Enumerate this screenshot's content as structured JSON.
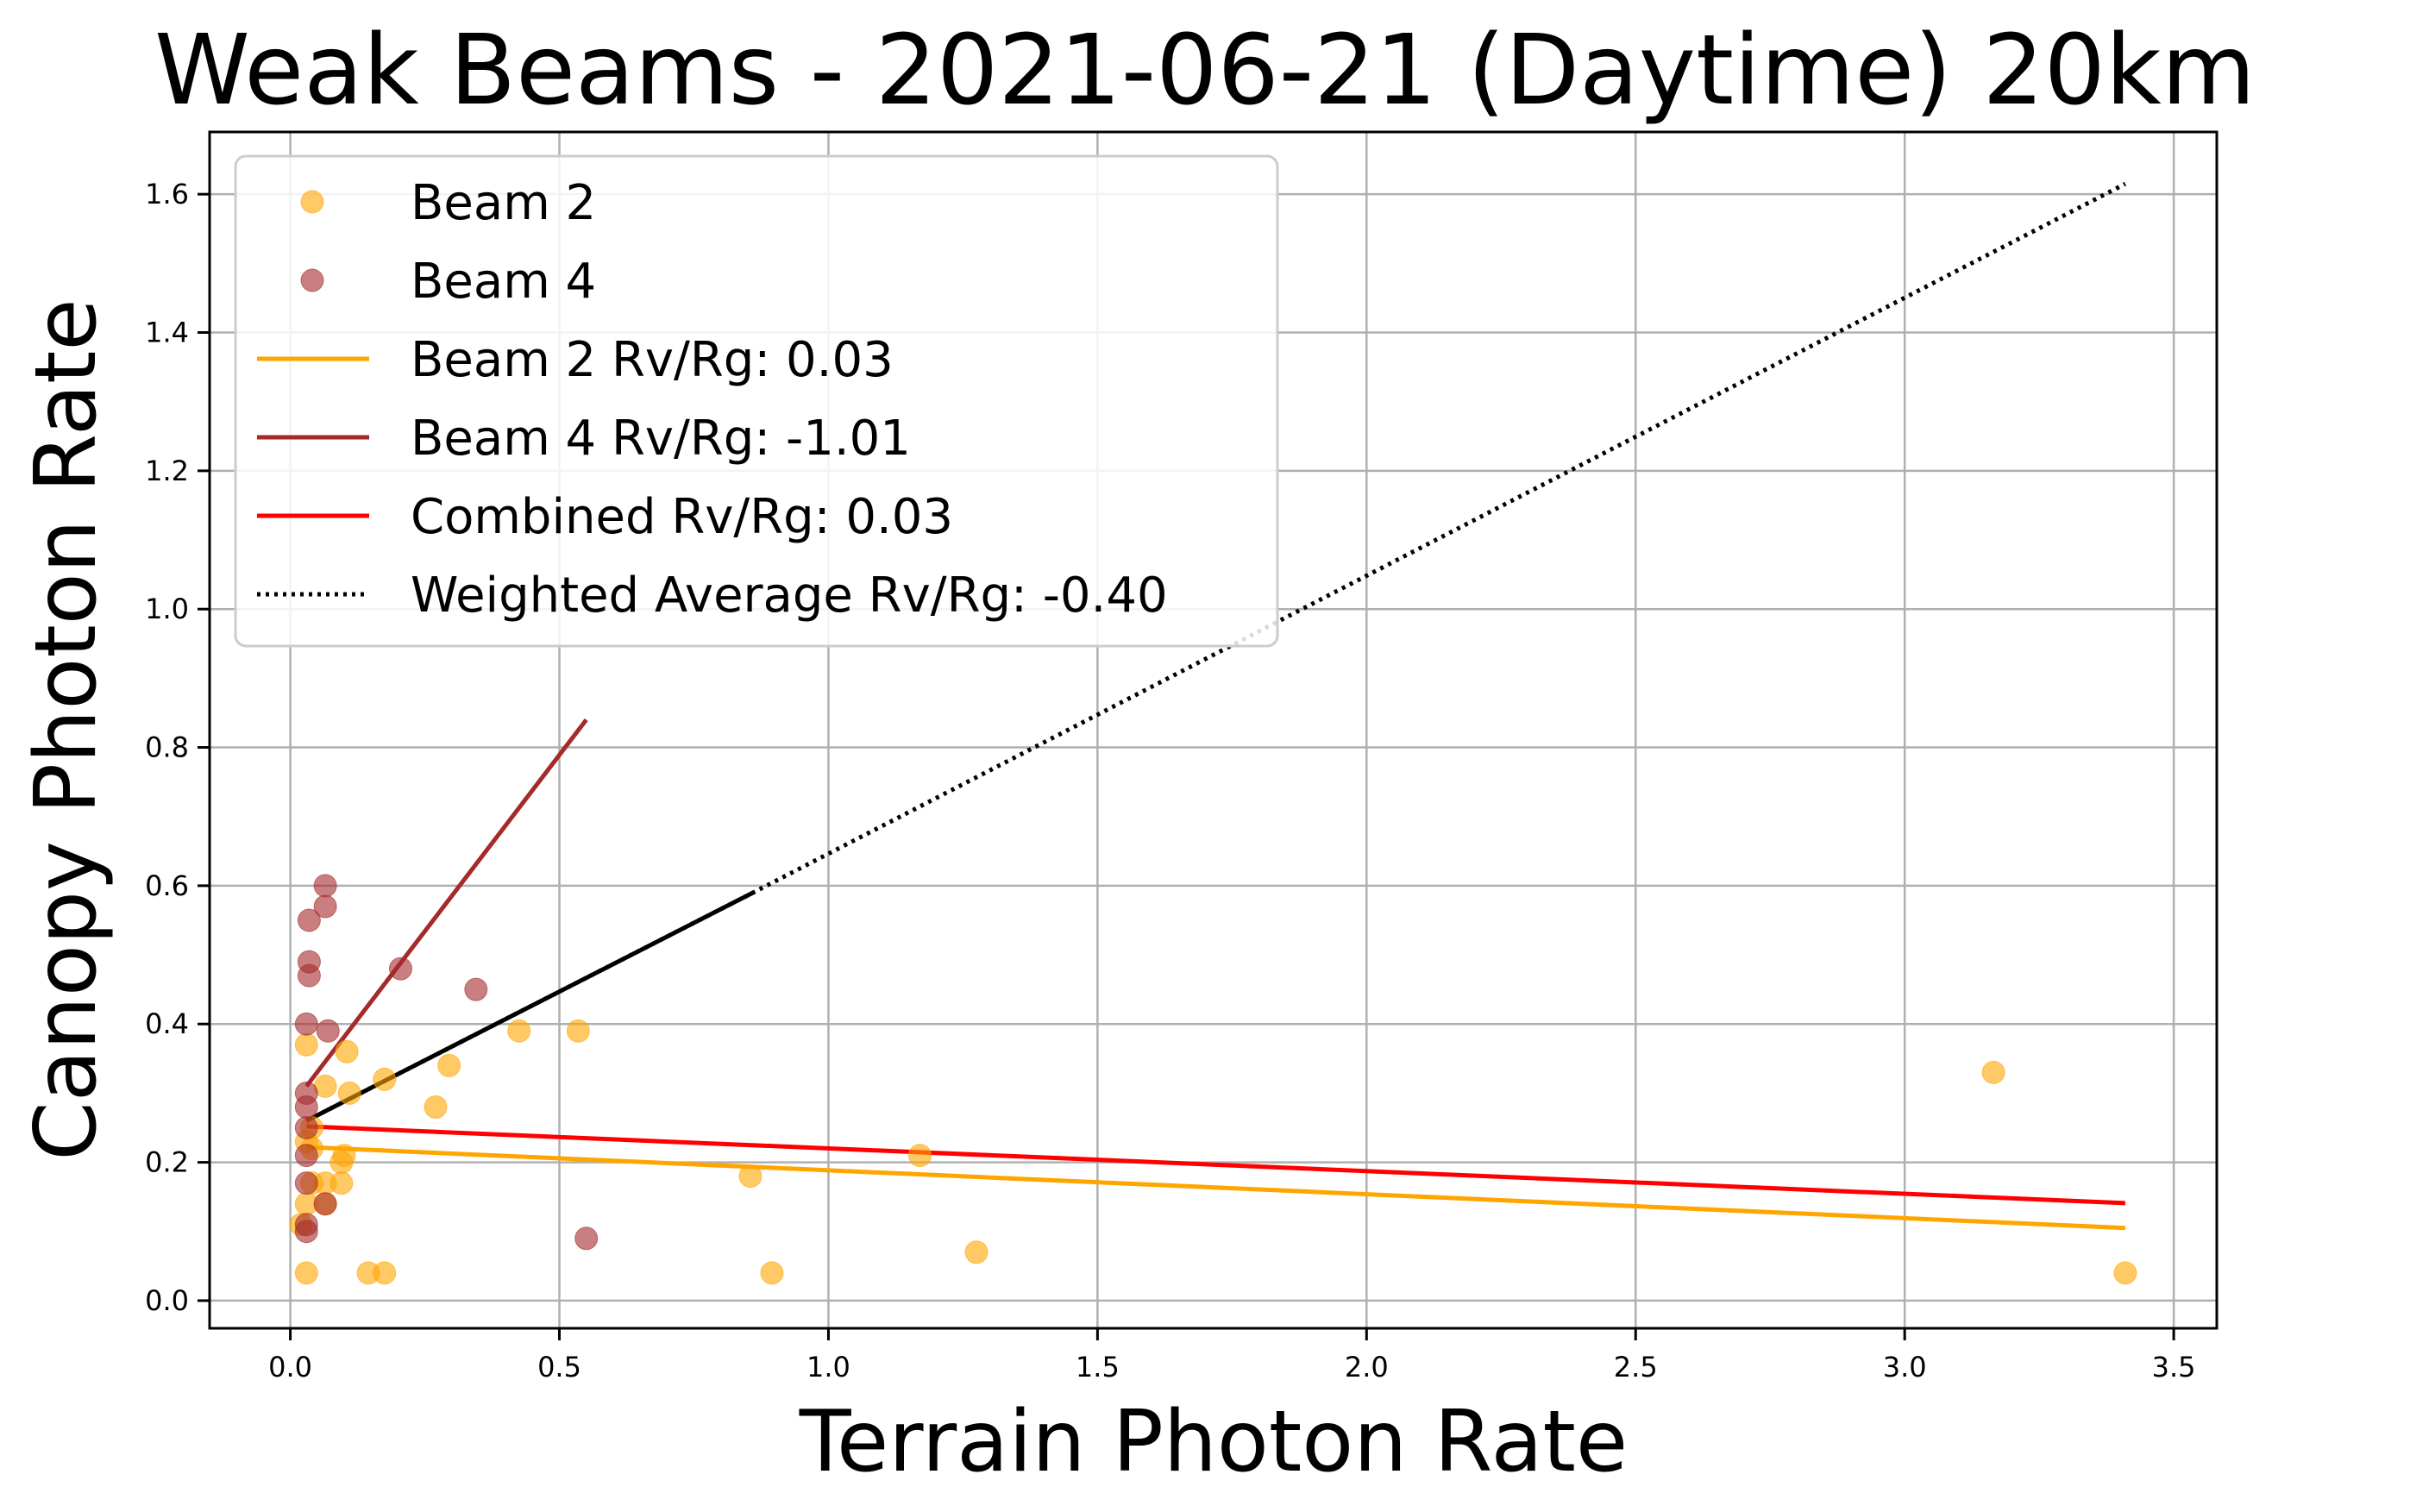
{
  "chart_data": {
    "type": "scatter",
    "title": "Weak Beams - 2021-06-21 (Daytime) 20km",
    "xlabel": "Terrain Photon Rate",
    "ylabel": "Canopy Photon Rate",
    "xlim": [
      -0.15,
      3.58
    ],
    "ylim": [
      -0.04,
      1.69
    ],
    "x_ticks": [
      0.0,
      0.5,
      1.0,
      1.5,
      2.0,
      2.5,
      3.0,
      3.5
    ],
    "x_tick_labels": [
      "0.0",
      "0.5",
      "1.0",
      "1.5",
      "2.0",
      "2.5",
      "3.0",
      "3.5"
    ],
    "y_ticks": [
      0.0,
      0.2,
      0.4,
      0.6,
      0.8,
      1.0,
      1.2,
      1.4,
      1.6
    ],
    "y_tick_labels": [
      "0.0",
      "0.2",
      "0.4",
      "0.6",
      "0.8",
      "1.0",
      "1.2",
      "1.4",
      "1.6"
    ],
    "grid": true,
    "legend_position": "top-left",
    "scatter_series": [
      {
        "name": "Beam 2",
        "color": "#FFA500",
        "points": [
          [
            0.02,
            0.11
          ],
          [
            0.03,
            0.37
          ],
          [
            0.03,
            0.23
          ],
          [
            0.03,
            0.14
          ],
          [
            0.03,
            0.04
          ],
          [
            0.04,
            0.25
          ],
          [
            0.04,
            0.17
          ],
          [
            0.04,
            0.22
          ],
          [
            0.065,
            0.31
          ],
          [
            0.065,
            0.17
          ],
          [
            0.065,
            0.14
          ],
          [
            0.095,
            0.2
          ],
          [
            0.095,
            0.17
          ],
          [
            0.1,
            0.21
          ],
          [
            0.105,
            0.36
          ],
          [
            0.11,
            0.3
          ],
          [
            0.145,
            0.04
          ],
          [
            0.175,
            0.32
          ],
          [
            0.175,
            0.04
          ],
          [
            0.27,
            0.28
          ],
          [
            0.295,
            0.34
          ],
          [
            0.425,
            0.39
          ],
          [
            0.535,
            0.39
          ],
          [
            0.855,
            0.18
          ],
          [
            0.895,
            0.04
          ],
          [
            1.17,
            0.21
          ],
          [
            1.275,
            0.07
          ],
          [
            3.165,
            0.33
          ],
          [
            3.41,
            0.04
          ]
        ]
      },
      {
        "name": "Beam 4",
        "color": "#A52A2A",
        "points": [
          [
            0.03,
            0.1
          ],
          [
            0.03,
            0.11
          ],
          [
            0.03,
            0.17
          ],
          [
            0.03,
            0.21
          ],
          [
            0.03,
            0.25
          ],
          [
            0.03,
            0.28
          ],
          [
            0.03,
            0.3
          ],
          [
            0.03,
            0.4
          ],
          [
            0.035,
            0.47
          ],
          [
            0.035,
            0.49
          ],
          [
            0.035,
            0.55
          ],
          [
            0.065,
            0.6
          ],
          [
            0.065,
            0.57
          ],
          [
            0.065,
            0.14
          ],
          [
            0.07,
            0.39
          ],
          [
            0.205,
            0.48
          ],
          [
            0.345,
            0.45
          ],
          [
            0.55,
            0.09
          ]
        ]
      }
    ],
    "line_series": [
      {
        "name": "Beam 2 Rv/Rg: 0.03",
        "color": "#FFA500",
        "style": "solid",
        "points": [
          [
            0.03,
            0.222
          ],
          [
            3.41,
            0.105
          ]
        ]
      },
      {
        "name": "Beam 4 Rv/Rg: -1.01",
        "color": "#A52A2A",
        "style": "solid",
        "points": [
          [
            0.03,
            0.31
          ],
          [
            0.55,
            0.84
          ]
        ]
      },
      {
        "name": "Combined Rv/Rg: 0.03",
        "color": "#FF0000",
        "style": "solid",
        "points": [
          [
            0.03,
            0.252
          ],
          [
            3.41,
            0.141
          ]
        ]
      },
      {
        "name": "Weighted Average Rv/Rg: -0.40",
        "color": "#000000",
        "style": "dotted",
        "points": [
          [
            0.03,
            0.26
          ],
          [
            0.86,
            0.59
          ],
          [
            3.41,
            1.615
          ]
        ],
        "solid_until_x": 0.86
      }
    ]
  }
}
